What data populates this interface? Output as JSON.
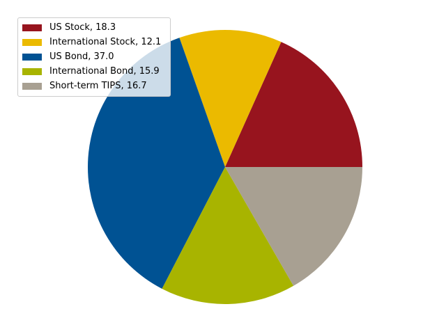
{
  "chart_data": {
    "type": "pie",
    "title": "",
    "slices": [
      {
        "label": "US Stock",
        "value": 18.3,
        "legend_text": "US Stock, 18.3",
        "color": "#97141e"
      },
      {
        "label": "International Stock",
        "value": 12.1,
        "legend_text": "International Stock, 12.1",
        "color": "#ebba00"
      },
      {
        "label": "US Bond",
        "value": 37.0,
        "legend_text": "US Bond, 37.0",
        "color": "#005293"
      },
      {
        "label": "International Bond",
        "value": 15.9,
        "legend_text": "International Bond, 15.9",
        "color": "#a8b400"
      },
      {
        "label": "Short-term TIPS",
        "value": 16.7,
        "legend_text": "Short-term TIPS, 16.7",
        "color": "#a8a092"
      }
    ],
    "start_angle_deg": 0,
    "direction": "counterclockwise",
    "legend_location": "upper-left"
  }
}
